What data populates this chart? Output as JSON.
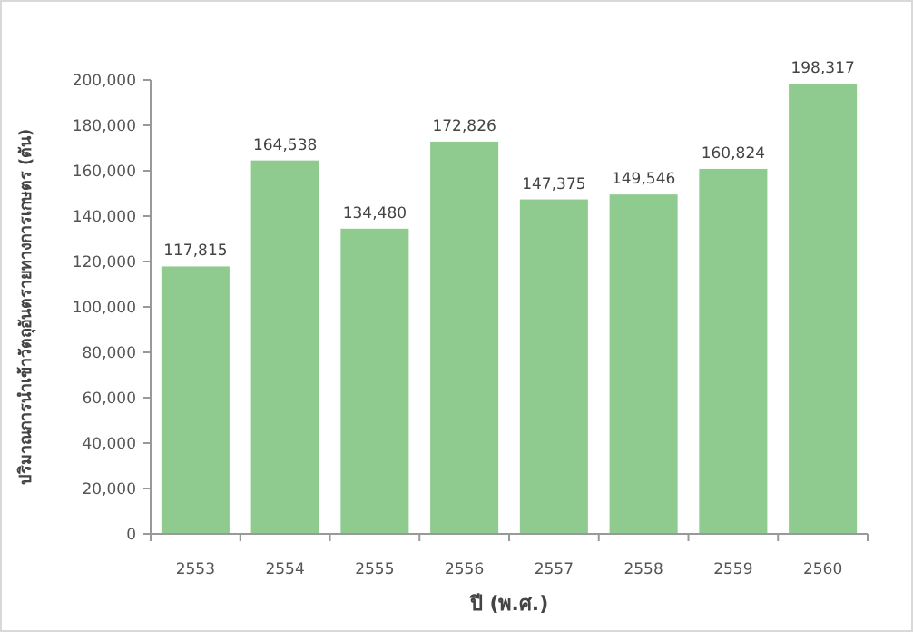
{
  "chart_data": {
    "type": "bar",
    "xlabel": "ปี (พ.ศ.)",
    "ylabel": "ปริมาณการนำเข้าวัตถุอันตรายทางการเกษตร (ตัน)",
    "categories": [
      "2553",
      "2554",
      "2555",
      "2556",
      "2557",
      "2558",
      "2559",
      "2560"
    ],
    "values": [
      117815,
      164538,
      134480,
      172826,
      147375,
      149546,
      160824,
      198317
    ],
    "color": "#8fcb8f",
    "value_labels": [
      "117,815",
      "164,538",
      "134,480",
      "172,826",
      "147,375",
      "149,546",
      "160,824",
      "198,317"
    ],
    "ylim": [
      0,
      200000
    ],
    "yticks": [
      {
        "value": 0,
        "label": "0"
      },
      {
        "value": 20000,
        "label": "20,000"
      },
      {
        "value": 40000,
        "label": "40,000"
      },
      {
        "value": 60000,
        "label": "60,000"
      },
      {
        "value": 80000,
        "label": "80,000"
      },
      {
        "value": 100000,
        "label": "100,000"
      },
      {
        "value": 120000,
        "label": "120,000"
      },
      {
        "value": 140000,
        "label": "140,000"
      },
      {
        "value": 160000,
        "label": "160,000"
      },
      {
        "value": 180000,
        "label": "180,000"
      },
      {
        "value": 200000,
        "label": "200,000"
      }
    ],
    "grid": false
  }
}
